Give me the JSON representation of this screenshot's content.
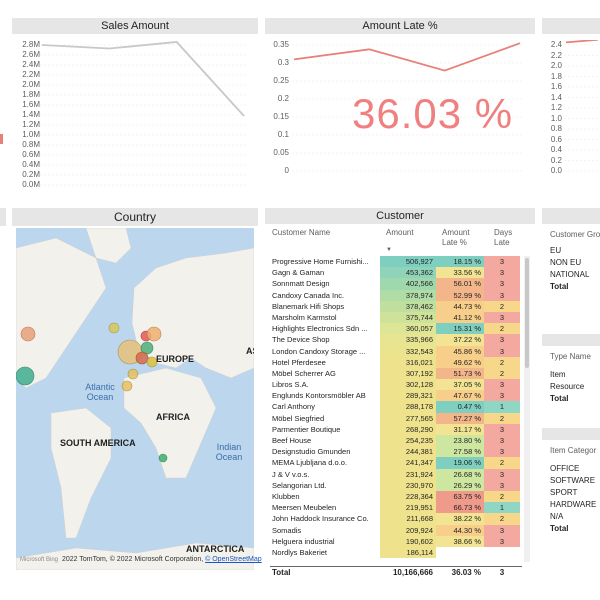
{
  "panels": {
    "sales_title": "Sales Amount",
    "late_title": "Amount Late %",
    "country_title": "Country",
    "customer_title": "Customer"
  },
  "kpi": {
    "amount_late_pct": "36.03 %"
  },
  "chart_data": [
    {
      "type": "line",
      "title": "Sales Amount",
      "y_ticks": [
        "2.8M",
        "2.6M",
        "2.4M",
        "2.2M",
        "2.0M",
        "1.8M",
        "1.6M",
        "1.4M",
        "1.2M",
        "1.0M",
        "0.8M",
        "0.6M",
        "0.4M",
        "0.2M",
        "0.0M"
      ],
      "ylim": [
        0,
        2.8
      ],
      "series": [
        {
          "values": [
            2.8,
            2.73,
            2.86,
            1.38
          ],
          "color": "#c8c8c8"
        }
      ]
    },
    {
      "type": "line",
      "title": "Amount Late %",
      "y_ticks": [
        "0.35",
        "0.3",
        "0.25",
        "0.2",
        "0.15",
        "0.1",
        "0.05",
        "0"
      ],
      "ylim": [
        0,
        0.35
      ],
      "series": [
        {
          "values": [
            0.31,
            0.338,
            0.279,
            0.355
          ],
          "color": "#e8807a"
        }
      ]
    },
    {
      "type": "line",
      "y_ticks": [
        "2.4",
        "2.2",
        "2.0",
        "1.8",
        "1.6",
        "1.4",
        "1.2",
        "1.0",
        "0.8",
        "0.6",
        "0.4",
        "0.2",
        "0.0"
      ],
      "ylim": [
        0,
        2.4
      ],
      "series": [
        {
          "values": [
            2.45,
            2.5
          ],
          "color": "#e8807a"
        }
      ]
    }
  ],
  "map": {
    "labels": {
      "europe": "EUROPE",
      "africa": "AFRICA",
      "south_america": "SOUTH AMERICA",
      "antarctica": "ANTARCTICA",
      "atlantic": "Atlantic Ocean",
      "indian": "Indian Ocean",
      "asia_partial": "AS"
    },
    "footer_prefix": "Microsoft Bing",
    "footer": "2022 TomTom, © 2022 Microsoft Corporation, ",
    "footer_link": "© OpenStreetMap"
  },
  "customer_table": {
    "headers": {
      "name": "Customer Name",
      "amount": "Amount",
      "late_pct": "Amount Late %",
      "days_late": "Days Late"
    },
    "rows": [
      {
        "name": "Progressive Home Furnishi...",
        "amount": "506,927",
        "pct": "18.15 %",
        "days": "3"
      },
      {
        "name": "Gagn & Gaman",
        "amount": "453,362",
        "pct": "33.56 %",
        "days": "3"
      },
      {
        "name": "Sonnmatt Design",
        "amount": "402,566",
        "pct": "56.01 %",
        "days": "3"
      },
      {
        "name": "Candoxy Canada Inc.",
        "amount": "378,974",
        "pct": "52.99 %",
        "days": "3"
      },
      {
        "name": "Blanemark Hifi Shops",
        "amount": "378,462",
        "pct": "44.73 %",
        "days": "2"
      },
      {
        "name": "Marsholm Karmstol",
        "amount": "375,744",
        "pct": "41.12 %",
        "days": "3"
      },
      {
        "name": "Highlights Electronics Sdn ...",
        "amount": "360,057",
        "pct": "15.31 %",
        "days": "2"
      },
      {
        "name": "The Device Shop",
        "amount": "335,966",
        "pct": "37.22 %",
        "days": "3"
      },
      {
        "name": "London Candoxy Storage ...",
        "amount": "332,543",
        "pct": "45.86 %",
        "days": "3"
      },
      {
        "name": "Hotel Pferdesee",
        "amount": "316,021",
        "pct": "49.62 %",
        "days": "2"
      },
      {
        "name": "Möbel Scherrer AG",
        "amount": "307,192",
        "pct": "51.73 %",
        "days": "2"
      },
      {
        "name": "Libros S.A.",
        "amount": "302,128",
        "pct": "37.05 %",
        "days": "3"
      },
      {
        "name": "Englunds Kontorsmöbler AB",
        "amount": "289,321",
        "pct": "47.67 %",
        "days": "3"
      },
      {
        "name": "Carl Anthony",
        "amount": "288,178",
        "pct": "0.47 %",
        "days": "1"
      },
      {
        "name": "Möbel Siegfried",
        "amount": "277,565",
        "pct": "57.27 %",
        "days": "2"
      },
      {
        "name": "Parmentier Boutique",
        "amount": "268,290",
        "pct": "31.17 %",
        "days": "3"
      },
      {
        "name": "Beef House",
        "amount": "254,235",
        "pct": "23.80 %",
        "days": "3"
      },
      {
        "name": "Designstudio Gmunden",
        "amount": "244,381",
        "pct": "27.58 %",
        "days": "3"
      },
      {
        "name": "MEMA Ljubljana d.o.o.",
        "amount": "241,347",
        "pct": "19.06 %",
        "days": "2"
      },
      {
        "name": "J & V v.o.s.",
        "amount": "231,924",
        "pct": "26.68 %",
        "days": "3"
      },
      {
        "name": "Selangorian Ltd.",
        "amount": "230,970",
        "pct": "26.29 %",
        "days": "3"
      },
      {
        "name": "Klubben",
        "amount": "228,364",
        "pct": "63.75 %",
        "days": "2"
      },
      {
        "name": "Meersen Meubelen",
        "amount": "219,951",
        "pct": "66.73 %",
        "days": "1"
      },
      {
        "name": "John Haddock Insurance Co.",
        "amount": "211,668",
        "pct": "38.22 %",
        "days": "2"
      },
      {
        "name": "Somadis",
        "amount": "209,924",
        "pct": "44.30 %",
        "days": "3"
      },
      {
        "name": "Helguera industrial",
        "amount": "190,602",
        "pct": "38.66 %",
        "days": "3"
      },
      {
        "name": "Nordlys Bakeriet",
        "amount": "186,114",
        "pct": "",
        "days": ""
      }
    ],
    "total": {
      "label": "Total",
      "amount": "10,166,666",
      "pct": "36.03 %",
      "days": "3"
    }
  },
  "side_tables": {
    "group": {
      "header": "Customer Gro",
      "items": [
        "EU",
        "NON EU",
        "NATIONAL",
        "Total"
      ]
    },
    "type": {
      "header": "Type Name",
      "items": [
        "Item",
        "Resource",
        "Total"
      ]
    },
    "category": {
      "header": "Item Categor",
      "items": [
        "OFFICE",
        "SOFTWARE",
        "SPORT",
        "HARDWARE",
        "N/A",
        "Total"
      ]
    }
  }
}
